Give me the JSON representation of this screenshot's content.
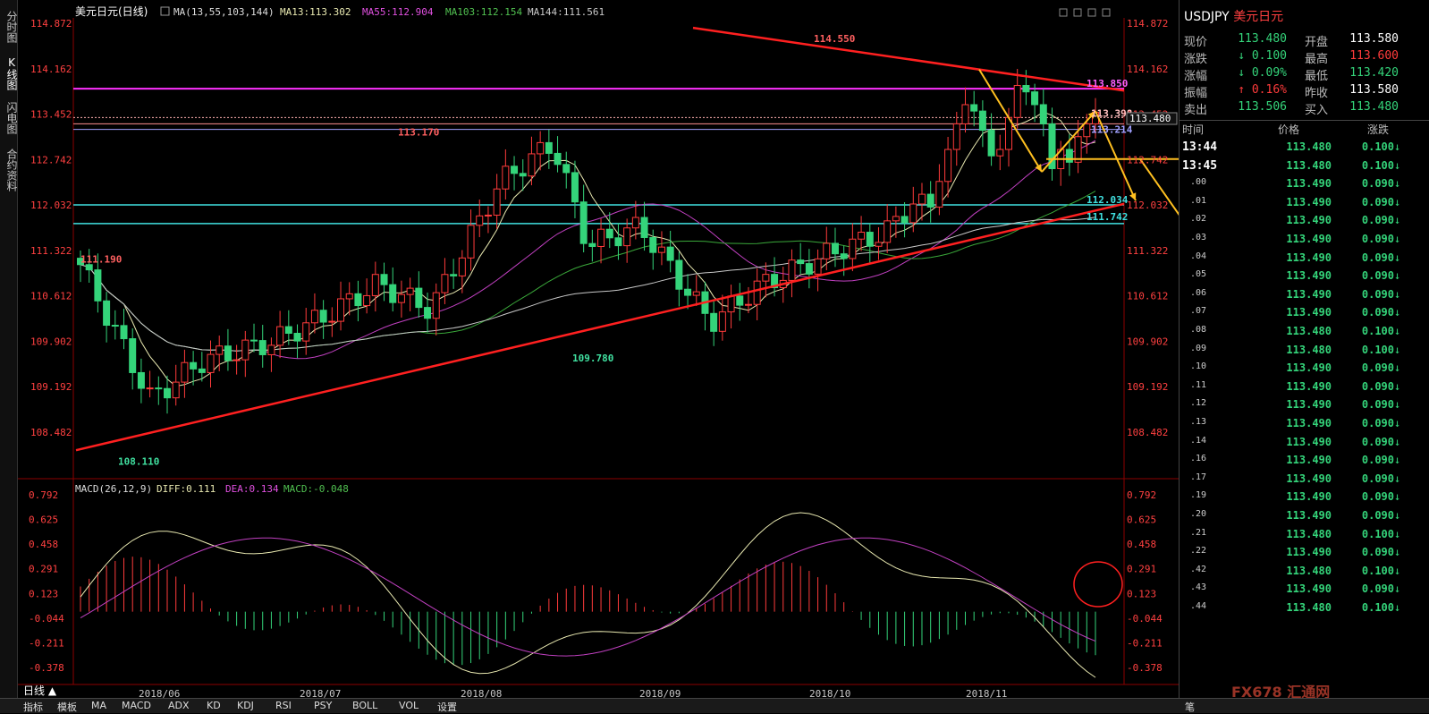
{
  "sidebar": {
    "tabs": [
      "分时图",
      "K线图",
      "闪电图",
      "合约资料"
    ]
  },
  "header": {
    "title": "美元日元(日线)",
    "ma_params": "MA(13,55,103,144)",
    "ma13": "MA13:113.302",
    "ma55": "MA55:112.904",
    "ma103": "MA103:112.154",
    "ma144": "MA144:111.561"
  },
  "macd_header": {
    "params": "MACD(26,12,9)",
    "diff": "DIFF:0.111",
    "dea": "DEA:0.134",
    "macd": "MACD:-0.048"
  },
  "price_axis": [
    "114.872",
    "114.162",
    "113.452",
    "112.742",
    "112.032",
    "111.322",
    "110.612",
    "109.902",
    "109.192",
    "108.482"
  ],
  "macd_axis": [
    "0.792",
    "0.625",
    "0.458",
    "0.291",
    "0.123",
    "-0.044",
    "-0.211",
    "-0.378"
  ],
  "date_labels": [
    "2018/06",
    "2018/07",
    "2018/08",
    "2018/09",
    "2018/10",
    "2018/11"
  ],
  "annotations": {
    "high": "114.550",
    "low1": "111.190",
    "low2": "108.110",
    "low3": "109.780",
    "peak": "113.170",
    "line_113850": "113.850",
    "line_113398": "113.398",
    "line_113214": "113.214",
    "line_112034": "112.034",
    "line_111742": "111.742",
    "last_price_box": "113.480"
  },
  "colors": {
    "up": "#ff3b3b",
    "down": "#34d47a",
    "ma13": "#e8e8b0",
    "ma55": "#c040c0",
    "ma103": "#3aa83a",
    "ma144": "#c8c8c8",
    "resistance": "#ff2020",
    "magenta_line": "#ff30ff",
    "cyan_line": "#40e0e0",
    "arrow": "#ffc020"
  },
  "quote": {
    "symbol": "USDJPY",
    "name": "美元日元",
    "rows": [
      {
        "l1": "现价",
        "v1": "113.480",
        "l2": "开盘",
        "v2": "113.580",
        "c1": "#34d47a",
        "c2": "#ffffff"
      },
      {
        "l1": "涨跌",
        "v1": "↓ 0.100",
        "l2": "最高",
        "v2": "113.600",
        "c1": "#34d47a",
        "c2": "#ff3b3b"
      },
      {
        "l1": "涨幅",
        "v1": "↓ 0.09%",
        "l2": "最低",
        "v2": "113.420",
        "c1": "#34d47a",
        "c2": "#34d47a"
      },
      {
        "l1": "振幅",
        "v1": "↑ 0.16%",
        "l2": "昨收",
        "v2": "113.580",
        "c1": "#ff3b3b",
        "c2": "#ffffff"
      },
      {
        "l1": "卖出",
        "v1": "113.506",
        "l2": "买入",
        "v2": "113.480",
        "c1": "#34d47a",
        "c2": "#34d47a"
      }
    ],
    "tick_headers": {
      "time": "时间",
      "price": "价格",
      "change": "涨跌"
    },
    "ticks": [
      {
        "t": "13:44",
        "p": "113.480",
        "c": "0.100"
      },
      {
        "t": "13:45",
        "p": "113.480",
        "c": "0.100"
      },
      {
        "t": ".00",
        "p": "113.490",
        "c": "0.090"
      },
      {
        "t": ".01",
        "p": "113.490",
        "c": "0.090"
      },
      {
        "t": ".02",
        "p": "113.490",
        "c": "0.090"
      },
      {
        "t": ".03",
        "p": "113.490",
        "c": "0.090"
      },
      {
        "t": ".04",
        "p": "113.490",
        "c": "0.090"
      },
      {
        "t": ".05",
        "p": "113.490",
        "c": "0.090"
      },
      {
        "t": ".06",
        "p": "113.490",
        "c": "0.090"
      },
      {
        "t": ".07",
        "p": "113.490",
        "c": "0.090"
      },
      {
        "t": ".08",
        "p": "113.480",
        "c": "0.100"
      },
      {
        "t": ".09",
        "p": "113.480",
        "c": "0.100"
      },
      {
        "t": ".10",
        "p": "113.490",
        "c": "0.090"
      },
      {
        "t": ".11",
        "p": "113.490",
        "c": "0.090"
      },
      {
        "t": ".12",
        "p": "113.490",
        "c": "0.090"
      },
      {
        "t": ".13",
        "p": "113.490",
        "c": "0.090"
      },
      {
        "t": ".14",
        "p": "113.490",
        "c": "0.090"
      },
      {
        "t": ".16",
        "p": "113.490",
        "c": "0.090"
      },
      {
        "t": ".17",
        "p": "113.490",
        "c": "0.090"
      },
      {
        "t": ".19",
        "p": "113.490",
        "c": "0.090"
      },
      {
        "t": ".20",
        "p": "113.490",
        "c": "0.090"
      },
      {
        "t": ".21",
        "p": "113.480",
        "c": "0.100"
      },
      {
        "t": ".22",
        "p": "113.490",
        "c": "0.090"
      },
      {
        "t": ".42",
        "p": "113.480",
        "c": "0.100"
      },
      {
        "t": ".43",
        "p": "113.490",
        "c": "0.090"
      },
      {
        "t": ".44",
        "p": "113.480",
        "c": "0.100"
      }
    ]
  },
  "bottom": {
    "period": "日线 ▲",
    "tabs": [
      "指标",
      "模板",
      "MA",
      "MACD",
      "ADX",
      "KD",
      "KDJ",
      "RSI",
      "PSY",
      "BOLL",
      "VOL",
      "设置"
    ],
    "right_tab": "笔",
    "watermark": "FX678 汇通网"
  }
}
